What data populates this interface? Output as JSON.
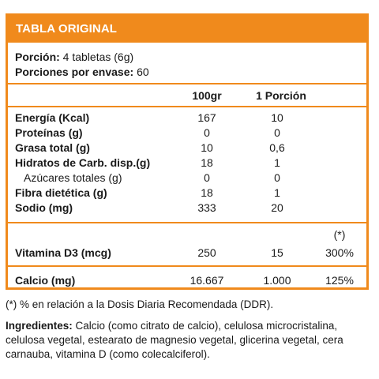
{
  "header": {
    "title": "TABLA ORIGINAL"
  },
  "serving": {
    "portion_label": "Porción:",
    "portion_value": "4 tabletas (6g)",
    "per_container_label": "Porciones por envase:",
    "per_container_value": "60"
  },
  "columns": {
    "per100": "100gr",
    "per_portion": "1 Porción"
  },
  "nutrients": [
    {
      "label": "Energía (Kcal)",
      "per100": "167",
      "portion": "10",
      "bold": true
    },
    {
      "label": "Proteínas (g)",
      "per100": "0",
      "portion": "0",
      "bold": true
    },
    {
      "label": "Grasa total (g)",
      "per100": "10",
      "portion": "0,6",
      "bold": true
    },
    {
      "label": "Hidratos de Carb. disp.(g)",
      "per100": "18",
      "portion": "1",
      "bold": true
    },
    {
      "label": "Azúcares totales (g)",
      "per100": "0",
      "portion": "0",
      "bold": false
    },
    {
      "label": "Fibra dietética (g)",
      "per100": "18",
      "portion": "1",
      "bold": true
    },
    {
      "label": "Sodio (mg)",
      "per100": "333",
      "portion": "20",
      "bold": true
    }
  ],
  "vitamin": {
    "ddr_mark": "(*)",
    "label": "Vitamina D3 (mcg)",
    "per100": "250",
    "portion": "15",
    "ddr": "300%"
  },
  "calcium": {
    "label": "Calcio (mg)",
    "per100": "16.667",
    "portion": "1.000",
    "ddr": "125%"
  },
  "footnote": "(*) % en relación a la Dosis Diaria Recomendada (DDR).",
  "ingredients": {
    "label": "Ingredientes:",
    "text": "Calcio (como citrato de calcio), celulosa microcristalina, celulosa vegetal, estearato de magnesio vegetal, glicerina vegetal, cera carnauba, vitamina D (como colecalciferol)."
  },
  "colors": {
    "accent": "#f08a1c",
    "text": "#1a1a1a"
  }
}
